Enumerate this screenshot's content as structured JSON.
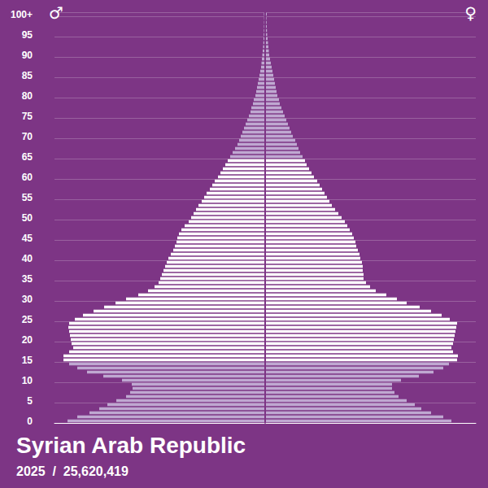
{
  "chart_data": {
    "type": "bar",
    "orientation": "horizontal",
    "title": "Syrian Arab Republic",
    "subtitle": "2025  /  25,620,419",
    "categories": [
      "0",
      null,
      null,
      null,
      null,
      "5",
      null,
      null,
      null,
      null,
      "10",
      null,
      null,
      null,
      null,
      "15",
      null,
      null,
      null,
      null,
      "20",
      null,
      null,
      null,
      null,
      "25",
      null,
      null,
      null,
      null,
      "30",
      null,
      null,
      null,
      null,
      "35",
      null,
      null,
      null,
      null,
      "40",
      null,
      null,
      null,
      null,
      "45",
      null,
      null,
      null,
      null,
      "50",
      null,
      null,
      null,
      null,
      "55",
      null,
      null,
      null,
      null,
      "60",
      null,
      null,
      null,
      null,
      "65",
      null,
      null,
      null,
      null,
      "70",
      null,
      null,
      null,
      null,
      "75",
      null,
      null,
      null,
      null,
      "80",
      null,
      null,
      null,
      null,
      "85",
      null,
      null,
      null,
      null,
      "90",
      null,
      null,
      null,
      null,
      "95",
      null,
      null,
      null,
      null,
      "100+"
    ],
    "series": [
      {
        "name": "♂",
        "values": [
          302500,
          287500,
          268750,
          253750,
          241250,
          227500,
          212500,
          206250,
          202500,
          203750,
          218750,
          247500,
          272500,
          287500,
          300000,
          308750,
          308750,
          300000,
          293750,
          296250,
          297500,
          298750,
          300000,
          301250,
          300000,
          291250,
          278750,
          262500,
          246250,
          228750,
          212500,
          193750,
          178750,
          168750,
          162500,
          160000,
          157500,
          155000,
          152500,
          150000,
          147500,
          143750,
          140000,
          137500,
          135000,
          133750,
          131250,
          127500,
          122500,
          116250,
          112500,
          108750,
          105000,
          101250,
          96250,
          92500,
          88750,
          83750,
          80000,
          76250,
          71250,
          67500,
          63750,
          60000,
          56250,
          52500,
          48750,
          45000,
          41250,
          38750,
          36250,
          33750,
          31250,
          28750,
          26250,
          23750,
          21250,
          20000,
          17500,
          16250,
          13750,
          12500,
          11250,
          10000,
          8750,
          7500,
          6250,
          5000,
          4375,
          3750,
          3125,
          2500,
          1875,
          1500,
          1250,
          1000,
          750,
          625,
          500,
          375,
          625
        ],
        "colors": [
          "#bfa8d1",
          "#bfa8d1",
          "#bfa8d1",
          "#bfa8d1",
          "#bfa8d1",
          "#bfa8d1",
          "#bfa8d1",
          "#bfa8d1",
          "#bfa8d1",
          "#bfa8d1",
          "#bfa8d1",
          "#bfa8d1",
          "#bfa8d1",
          "#bfa8d1",
          "#bfa8d1",
          "#ffffff",
          "#ffffff",
          "#ffffff",
          "#ffffff",
          "#ffffff",
          "#ffffff",
          "#ffffff",
          "#ffffff",
          "#ffffff",
          "#ffffff",
          "#ffffff",
          "#ffffff",
          "#ffffff",
          "#ffffff",
          "#ffffff",
          "#ffffff",
          "#ffffff",
          "#ffffff",
          "#ffffff",
          "#ffffff",
          "#ffffff",
          "#ffffff",
          "#ffffff",
          "#ffffff",
          "#ffffff",
          "#ffffff",
          "#ffffff",
          "#ffffff",
          "#ffffff",
          "#ffffff",
          "#ffffff",
          "#ffffff",
          "#ffffff",
          "#ffffff",
          "#ffffff",
          "#ffffff",
          "#ffffff",
          "#ffffff",
          "#ffffff",
          "#ffffff",
          "#ffffff",
          "#ffffff",
          "#ffffff",
          "#ffffff",
          "#ffffff",
          "#ffffff",
          "#ffffff",
          "#ffffff",
          "#ffffff",
          "#ffffff",
          "#bfa8d1",
          "#bfa8d1",
          "#bfa8d1",
          "#bfa8d1",
          "#bfa8d1",
          "#bfa8d1",
          "#bfa8d1",
          "#bfa8d1",
          "#bfa8d1",
          "#bfa8d1",
          "#bfa8d1",
          "#bfa8d1",
          "#bfa8d1",
          "#bfa8d1",
          "#bfa8d1",
          "#bfa8d1",
          "#bfa8d1",
          "#bfa8d1",
          "#bfa8d1",
          "#bfa8d1",
          "#bfa8d1",
          "#bfa8d1",
          "#bfa8d1",
          "#bfa8d1",
          "#bfa8d1",
          "#bfa8d1",
          "#bfa8d1",
          "#bfa8d1",
          "#bfa8d1",
          "#bfa8d1",
          "#bfa8d1",
          "#bfa8d1",
          "#bfa8d1",
          "#bfa8d1",
          "#bfa8d1",
          "#bfa8d1"
        ]
      },
      {
        "name": "♀",
        "values": [
          285000,
          272500,
          253750,
          238750,
          228750,
          216250,
          203750,
          197500,
          193750,
          193750,
          207500,
          235000,
          257500,
          272500,
          281250,
          293750,
          295000,
          287500,
          285000,
          287500,
          288750,
          290000,
          291250,
          292500,
          293750,
          282500,
          270000,
          253750,
          236250,
          216250,
          201250,
          185000,
          168750,
          160000,
          153750,
          150000,
          150000,
          148750,
          148750,
          147500,
          145000,
          143750,
          141250,
          138750,
          137500,
          135000,
          132500,
          128750,
          125000,
          121250,
          116250,
          111250,
          106250,
          101250,
          97500,
          93750,
          90000,
          86250,
          82500,
          78750,
          73750,
          70000,
          66250,
          62500,
          60000,
          56250,
          52500,
          50000,
          47500,
          45000,
          41250,
          38750,
          36250,
          33750,
          31250,
          28750,
          26250,
          23750,
          21250,
          20000,
          17500,
          16250,
          15000,
          13750,
          12500,
          11250,
          10000,
          8750,
          7500,
          6250,
          5000,
          4375,
          3750,
          3125,
          2500,
          1875,
          1500,
          1250,
          1000,
          750,
          1250
        ],
        "colors": [
          "#bfa8d1",
          "#bfa8d1",
          "#bfa8d1",
          "#bfa8d1",
          "#bfa8d1",
          "#bfa8d1",
          "#bfa8d1",
          "#bfa8d1",
          "#bfa8d1",
          "#bfa8d1",
          "#bfa8d1",
          "#bfa8d1",
          "#bfa8d1",
          "#bfa8d1",
          "#bfa8d1",
          "#ffffff",
          "#ffffff",
          "#ffffff",
          "#ffffff",
          "#ffffff",
          "#ffffff",
          "#ffffff",
          "#ffffff",
          "#ffffff",
          "#ffffff",
          "#ffffff",
          "#ffffff",
          "#ffffff",
          "#ffffff",
          "#ffffff",
          "#ffffff",
          "#ffffff",
          "#ffffff",
          "#ffffff",
          "#ffffff",
          "#ffffff",
          "#ffffff",
          "#ffffff",
          "#ffffff",
          "#ffffff",
          "#ffffff",
          "#ffffff",
          "#ffffff",
          "#ffffff",
          "#ffffff",
          "#ffffff",
          "#ffffff",
          "#ffffff",
          "#ffffff",
          "#ffffff",
          "#ffffff",
          "#ffffff",
          "#ffffff",
          "#ffffff",
          "#ffffff",
          "#ffffff",
          "#ffffff",
          "#ffffff",
          "#ffffff",
          "#ffffff",
          "#ffffff",
          "#ffffff",
          "#ffffff",
          "#ffffff",
          "#ffffff",
          "#bfa8d1",
          "#bfa8d1",
          "#bfa8d1",
          "#bfa8d1",
          "#bfa8d1",
          "#bfa8d1",
          "#bfa8d1",
          "#bfa8d1",
          "#bfa8d1",
          "#bfa8d1",
          "#bfa8d1",
          "#bfa8d1",
          "#bfa8d1",
          "#bfa8d1",
          "#bfa8d1",
          "#bfa8d1",
          "#bfa8d1",
          "#bfa8d1",
          "#bfa8d1",
          "#bfa8d1",
          "#bfa8d1",
          "#bfa8d1",
          "#bfa8d1",
          "#bfa8d1",
          "#bfa8d1",
          "#bfa8d1",
          "#bfa8d1",
          "#bfa8d1",
          "#bfa8d1",
          "#bfa8d1",
          "#bfa8d1",
          "#bfa8d1",
          "#bfa8d1",
          "#bfa8d1",
          "#bfa8d1",
          "#bfa8d1"
        ]
      }
    ],
    "xlim": [
      0,
      322500
    ],
    "tick_labels": "y",
    "grid": true
  }
}
